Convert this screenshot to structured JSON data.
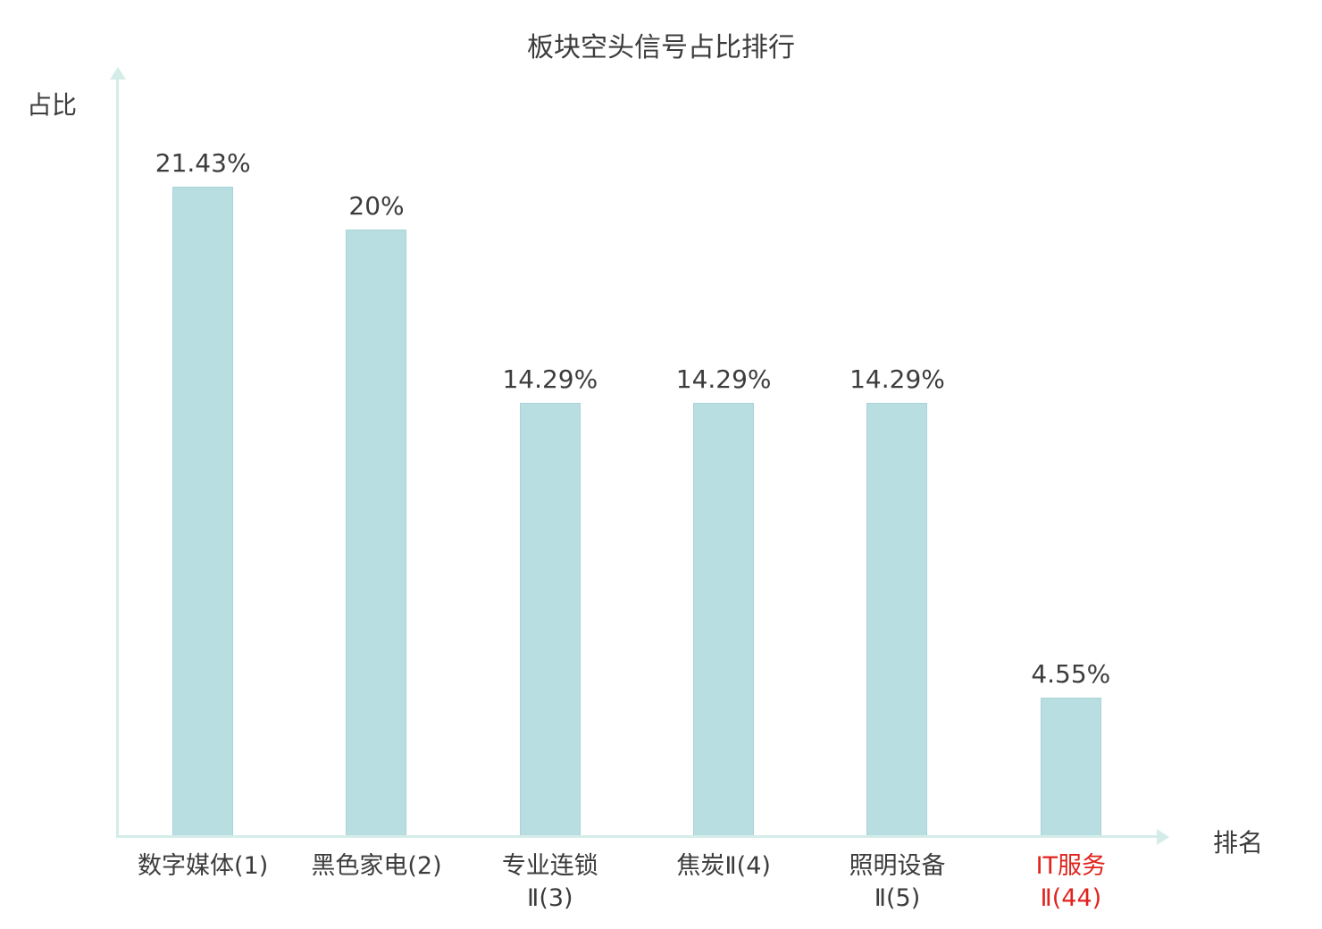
{
  "chart_data": {
    "type": "bar",
    "title": "板块空头信号占比排行",
    "xlabel": "排名",
    "ylabel": "占比",
    "ylim": [
      0,
      25
    ],
    "grid": false,
    "legend": "none",
    "bar_color": "#b9dee2",
    "bar_border_color": "#a8d3d9",
    "axis_color": "#d4ede9",
    "text_color": "#3c3c3c",
    "highlight_color": "#e0231d",
    "highlight_index": 5,
    "categories": [
      "数字媒体(1)",
      "黑色家电(2)",
      "专业连锁\nⅡ(3)",
      "焦炭Ⅱ(4)",
      "照明设备\nⅡ(5)",
      "IT服务\nⅡ(44)"
    ],
    "values": [
      21.43,
      20,
      14.29,
      14.29,
      14.29,
      4.55
    ],
    "value_labels": [
      "21.43%",
      "20%",
      "14.29%",
      "14.29%",
      "14.29%",
      "4.55%"
    ]
  }
}
